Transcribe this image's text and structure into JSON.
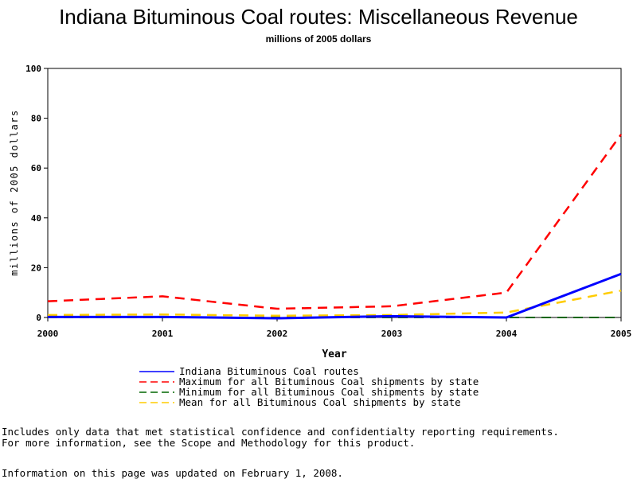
{
  "chart_data": {
    "type": "line",
    "title": "Indiana Bituminous Coal routes: Miscellaneous Revenue",
    "subtitle": "millions of 2005 dollars",
    "xlabel": "Year",
    "ylabel": "millions of 2005 dollars",
    "categories": [
      "2000",
      "2001",
      "2002",
      "2003",
      "2004",
      "2005"
    ],
    "y_ticks": [
      "0",
      "20",
      "40",
      "60",
      "80",
      "100"
    ],
    "ylim": [
      0,
      100
    ],
    "legend_position": "bottom",
    "grid": false,
    "series": [
      {
        "name": "Indiana Bituminous Coal routes",
        "values": [
          0.2,
          0.2,
          -0.3,
          0.5,
          0.0,
          17.5
        ],
        "color": "#0000ff",
        "style": "solid"
      },
      {
        "name": "Maximum for all Bituminous Coal shipments by state",
        "values": [
          6.5,
          8.5,
          3.5,
          4.5,
          10.0,
          73.5
        ],
        "color": "#ff0000",
        "style": "dashed"
      },
      {
        "name": "Minimum for all Bituminous Coal shipments by state",
        "values": [
          0.0,
          0.0,
          0.0,
          0.0,
          0.0,
          0.0
        ],
        "color": "#006600",
        "style": "dashed"
      },
      {
        "name": "Mean for all Bituminous Coal shipments by state",
        "values": [
          1.0,
          1.2,
          0.7,
          1.0,
          2.0,
          10.8
        ],
        "color": "#ffcc00",
        "style": "dashed"
      }
    ]
  },
  "notes": {
    "line1": "Includes only data that met statistical confidence and confidentialty reporting requirements.",
    "line2": "For more information, see the Scope and Methodology for this product.",
    "updated": "Information on this page was updated on February 1, 2008."
  }
}
